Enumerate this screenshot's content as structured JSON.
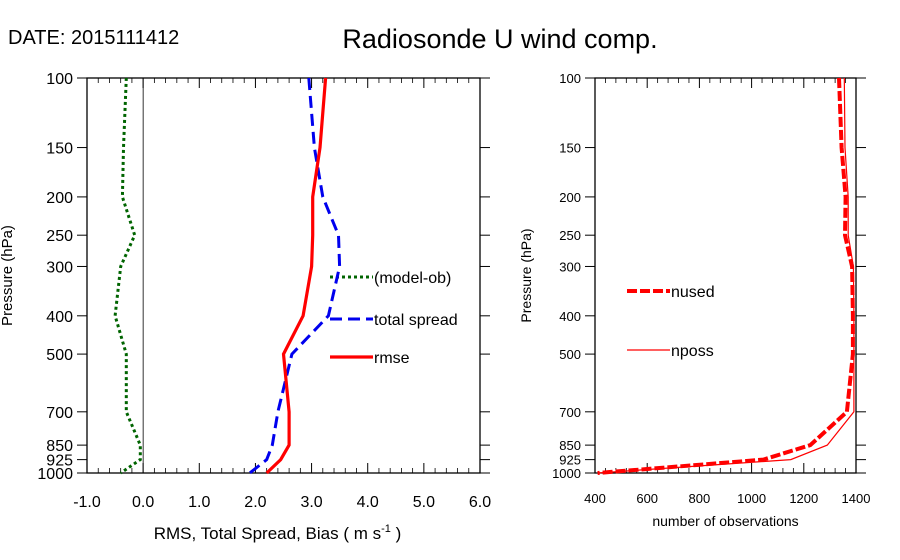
{
  "header": {
    "date_label": "DATE: 2015111412",
    "title": "Radiosonde U wind comp."
  },
  "chart_data": [
    {
      "type": "line",
      "xlabel": "RMS, Total Spread, Bias ( m s",
      "xlabel_sup": "-1",
      "xlabel_tail": " )",
      "ylabel": "Pressure (hPa)",
      "xlim": [
        -1.0,
        6.0
      ],
      "ylim": [
        1000,
        100
      ],
      "y_scale": "log",
      "x_ticks": [
        "-1.0",
        "0.0",
        "1.0",
        "2.0",
        "3.0",
        "4.0",
        "5.0",
        "6.0"
      ],
      "y_ticks": [
        100,
        150,
        200,
        250,
        300,
        400,
        500,
        700,
        850,
        925,
        1000
      ],
      "zero_line": true,
      "legend_position": "right-middle",
      "series": [
        {
          "name": "(model-ob)",
          "color": "#006400",
          "style": "dotted",
          "x": [
            -0.3,
            -0.35,
            -0.37,
            -0.15,
            -0.4,
            -0.5,
            -0.3,
            -0.3,
            -0.05,
            -0.05,
            -0.4
          ],
          "y": [
            100,
            150,
            200,
            250,
            300,
            400,
            500,
            700,
            850,
            925,
            1000
          ]
        },
        {
          "name": "total spread",
          "color": "#0000ee",
          "style": "dashed",
          "x": [
            2.95,
            3.05,
            3.2,
            3.48,
            3.5,
            3.3,
            2.65,
            2.4,
            2.3,
            2.2,
            1.9
          ],
          "y": [
            100,
            150,
            200,
            250,
            300,
            400,
            500,
            700,
            850,
            925,
            1000
          ]
        },
        {
          "name": "rmse",
          "color": "#ff0000",
          "style": "solid",
          "x": [
            3.25,
            3.15,
            3.02,
            3.02,
            3.0,
            2.85,
            2.5,
            2.6,
            2.6,
            2.45,
            2.2
          ],
          "y": [
            100,
            150,
            200,
            250,
            300,
            400,
            500,
            700,
            850,
            925,
            1000
          ]
        }
      ]
    },
    {
      "type": "line",
      "xlabel": "number of observations",
      "ylabel": "Pressure (hPa)",
      "xlim": [
        400,
        1400
      ],
      "ylim": [
        1000,
        100
      ],
      "y_scale": "log",
      "x_ticks": [
        "400",
        "600",
        "800",
        "1000",
        "1200",
        "1400"
      ],
      "y_ticks": [
        100,
        150,
        200,
        250,
        300,
        400,
        500,
        700,
        850,
        925,
        1000
      ],
      "legend_position": "left-middle",
      "series": [
        {
          "name": "nused",
          "color": "#ff0000",
          "style": "thick-dashed",
          "x": [
            1335,
            1345,
            1360,
            1358,
            1385,
            1388,
            1388,
            1365,
            1225,
            1045,
            410
          ],
          "y": [
            100,
            150,
            200,
            250,
            300,
            400,
            500,
            700,
            850,
            925,
            1000
          ]
        },
        {
          "name": "nposs",
          "color": "#ff0000",
          "style": "thin",
          "x": [
            1355,
            1358,
            1370,
            1370,
            1390,
            1392,
            1392,
            1392,
            1290,
            1150,
            410
          ],
          "y": [
            100,
            150,
            200,
            250,
            300,
            400,
            500,
            700,
            850,
            925,
            1000
          ]
        }
      ]
    }
  ]
}
